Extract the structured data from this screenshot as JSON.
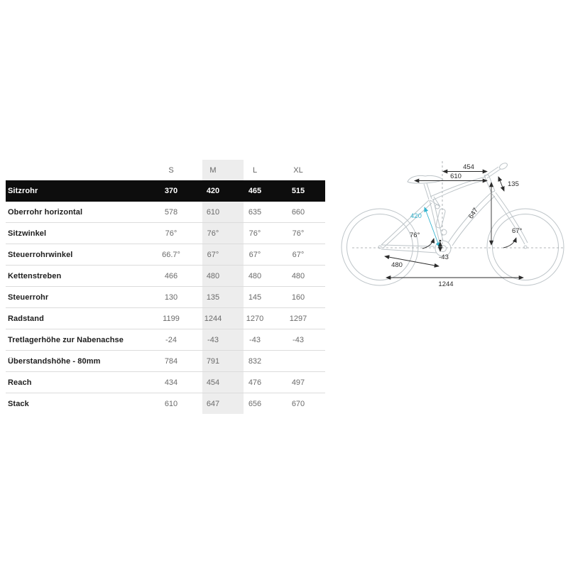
{
  "table": {
    "size_headers": [
      "S",
      "M",
      "L",
      "XL"
    ],
    "highlighted_row": "Sitzrohr",
    "highlighted_column": "M",
    "rows": [
      {
        "label": "Sitzrohr",
        "values": [
          "370",
          "420",
          "465",
          "515"
        ],
        "highlight": true
      },
      {
        "label": "Oberrohr horizontal",
        "values": [
          "578",
          "610",
          "635",
          "660"
        ]
      },
      {
        "label": "Sitzwinkel",
        "values": [
          "76°",
          "76°",
          "76°",
          "76°"
        ]
      },
      {
        "label": "Steuerrohrwinkel",
        "values": [
          "66.7°",
          "67°",
          "67°",
          "67°"
        ]
      },
      {
        "label": "Kettenstreben",
        "values": [
          "466",
          "480",
          "480",
          "480"
        ]
      },
      {
        "label": "Steuerrohr",
        "values": [
          "130",
          "135",
          "145",
          "160"
        ]
      },
      {
        "label": "Radstand",
        "values": [
          "1199",
          "1244",
          "1270",
          "1297"
        ]
      },
      {
        "label": "Tretlagerhöhe zur Nabenachse",
        "values": [
          "-24",
          "-43",
          "-43",
          "-43"
        ]
      },
      {
        "label": "Überstandshöhe - 80mm",
        "values": [
          "784",
          "791",
          "832",
          ""
        ]
      },
      {
        "label": "Reach",
        "values": [
          "434",
          "454",
          "476",
          "497"
        ]
      },
      {
        "label": "Stack",
        "values": [
          "610",
          "647",
          "656",
          "670"
        ]
      }
    ]
  },
  "diagram": {
    "annotations": {
      "reach": "454",
      "top_tube": "610",
      "head_tube": "135",
      "seat_tube": "420",
      "stack": "647",
      "seat_angle": "76°",
      "head_angle": "67°",
      "chainstay": "480",
      "bb_drop": "-43",
      "wheelbase": "1244"
    }
  },
  "colors": {
    "highlight_row_bg": "#0d0d0d",
    "highlight_col_bg": "#ededed",
    "separator": "#dcdcdc",
    "label_text": "#1d1d1d",
    "value_text": "#6b6b6b",
    "accent_cyan": "#35b4cf",
    "frame_line": "#bdc4c8",
    "annotation_line": "#2b2b2b"
  }
}
